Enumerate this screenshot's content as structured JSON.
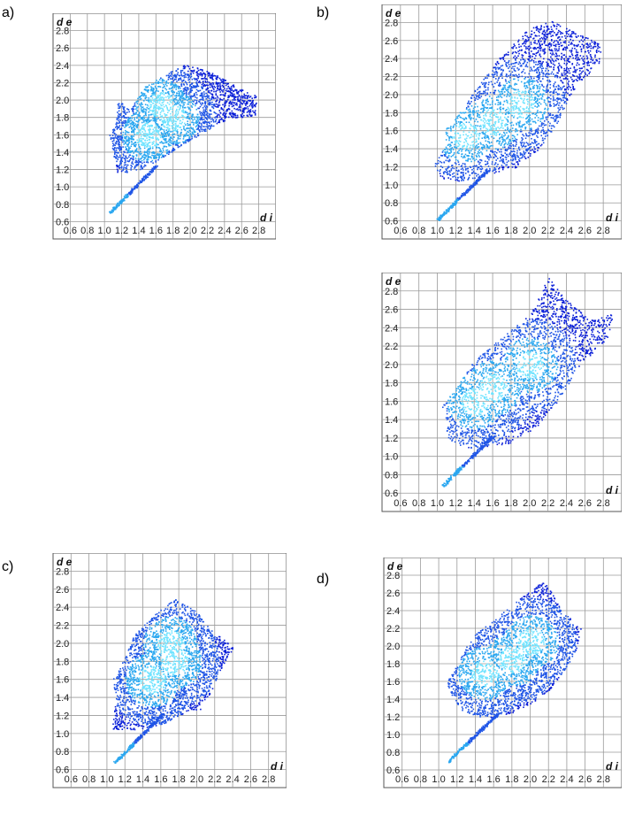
{
  "chart_data": [
    {
      "panel_label": "a)",
      "type": "scatter",
      "subtype": "fingerprint-plot",
      "xlabel": "d i",
      "ylabel": "d e",
      "xlim": [
        0.4,
        3.0
      ],
      "ylim": [
        0.4,
        3.0
      ],
      "x_ticks": [
        "0.6",
        "0.8",
        "1.0",
        "1.2",
        "1.4",
        "1.6",
        "1.8",
        "2.0",
        "2.2",
        "2.4",
        "2.6",
        "2.8"
      ],
      "y_ticks": [
        "0.6",
        "0.8",
        "1.0",
        "1.2",
        "1.4",
        "1.6",
        "1.8",
        "2.0",
        "2.2",
        "2.4",
        "2.6",
        "2.8"
      ],
      "grid": true,
      "spike_tip": [
        1.05,
        0.7
      ],
      "region_outline": [
        [
          1.15,
          1.15
        ],
        [
          1.05,
          1.62
        ],
        [
          1.12,
          1.7
        ],
        [
          1.15,
          2.0
        ],
        [
          1.3,
          1.9
        ],
        [
          1.45,
          2.15
        ],
        [
          1.7,
          2.3
        ],
        [
          1.95,
          2.42
        ],
        [
          2.3,
          2.3
        ],
        [
          2.65,
          2.1
        ],
        [
          2.78,
          2.05
        ],
        [
          2.75,
          1.82
        ],
        [
          2.45,
          1.8
        ],
        [
          2.1,
          1.6
        ],
        [
          1.85,
          1.45
        ],
        [
          1.6,
          1.3
        ],
        [
          1.4,
          1.2
        ]
      ],
      "density_centers": [
        [
          1.8,
          1.8
        ],
        [
          1.5,
          1.6
        ],
        [
          1.65,
          1.95
        ]
      ]
    },
    {
      "panel_label": "b)",
      "type": "scatter",
      "subtype": "fingerprint-plot",
      "xlabel": "d i",
      "ylabel": "d e",
      "xlim": [
        0.4,
        3.0
      ],
      "ylim": [
        0.4,
        3.0
      ],
      "x_ticks": [
        "0.6",
        "0.8",
        "1.0",
        "1.2",
        "1.4",
        "1.6",
        "1.8",
        "2.0",
        "2.2",
        "2.4",
        "2.6",
        "2.8"
      ],
      "y_ticks": [
        "0.6",
        "0.8",
        "1.0",
        "1.2",
        "1.4",
        "1.6",
        "1.8",
        "2.0",
        "2.2",
        "2.4",
        "2.6",
        "2.8"
      ],
      "grid": true,
      "spike_tip": [
        1.0,
        0.62
      ],
      "region_outline": [
        [
          1.05,
          1.05
        ],
        [
          0.95,
          1.25
        ],
        [
          1.1,
          1.45
        ],
        [
          1.05,
          1.6
        ],
        [
          1.2,
          1.75
        ],
        [
          1.4,
          2.05
        ],
        [
          1.7,
          2.45
        ],
        [
          2.0,
          2.75
        ],
        [
          2.25,
          2.82
        ],
        [
          2.6,
          2.65
        ],
        [
          2.78,
          2.55
        ],
        [
          2.75,
          2.35
        ],
        [
          2.5,
          2.1
        ],
        [
          2.3,
          1.7
        ],
        [
          2.1,
          1.4
        ],
        [
          1.85,
          1.2
        ],
        [
          1.5,
          1.1
        ],
        [
          1.3,
          1.05
        ]
      ],
      "density_centers": [
        [
          1.6,
          1.7
        ],
        [
          1.3,
          1.55
        ],
        [
          1.9,
          1.9
        ]
      ]
    },
    {
      "panel_label": "",
      "type": "scatter",
      "subtype": "fingerprint-plot",
      "xlabel": "d i",
      "ylabel": "d e",
      "xlim": [
        0.4,
        3.0
      ],
      "ylim": [
        0.4,
        3.0
      ],
      "x_ticks": [
        "0.6",
        "0.8",
        "1.0",
        "1.2",
        "1.4",
        "1.6",
        "1.8",
        "2.0",
        "2.2",
        "2.4",
        "2.6",
        "2.8"
      ],
      "y_ticks": [
        "0.6",
        "0.8",
        "1.0",
        "1.2",
        "1.4",
        "1.6",
        "1.8",
        "2.0",
        "2.2",
        "2.4",
        "2.6",
        "2.8"
      ],
      "grid": true,
      "spike_tip": [
        1.05,
        0.68
      ],
      "region_outline": [
        [
          1.1,
          1.2
        ],
        [
          1.05,
          1.55
        ],
        [
          1.2,
          1.75
        ],
        [
          1.4,
          2.05
        ],
        [
          1.7,
          2.3
        ],
        [
          2.0,
          2.55
        ],
        [
          2.2,
          2.95
        ],
        [
          2.4,
          2.7
        ],
        [
          2.65,
          2.5
        ],
        [
          2.9,
          2.55
        ],
        [
          2.85,
          2.3
        ],
        [
          2.55,
          2.0
        ],
        [
          2.3,
          1.6
        ],
        [
          2.05,
          1.3
        ],
        [
          1.8,
          1.15
        ],
        [
          1.5,
          1.1
        ],
        [
          1.3,
          1.1
        ]
      ],
      "density_centers": [
        [
          1.6,
          1.75
        ],
        [
          1.4,
          1.6
        ],
        [
          2.0,
          2.0
        ]
      ]
    },
    {
      "panel_label": "c)",
      "type": "scatter",
      "subtype": "fingerprint-plot",
      "xlabel": "d i",
      "ylabel": "d e",
      "xlim": [
        0.4,
        3.0
      ],
      "ylim": [
        0.4,
        3.0
      ],
      "x_ticks": [
        "0.6",
        "0.8",
        "1.0",
        "1.2",
        "1.4",
        "1.6",
        "1.8",
        "2.0",
        "2.2",
        "2.4",
        "2.6",
        "2.8"
      ],
      "y_ticks": [
        "0.6",
        "0.8",
        "1.0",
        "1.2",
        "1.4",
        "1.6",
        "1.8",
        "2.0",
        "2.2",
        "2.4",
        "2.6",
        "2.8"
      ],
      "grid": true,
      "spike_tip": [
        1.08,
        0.68
      ],
      "region_outline": [
        [
          1.05,
          1.05
        ],
        [
          1.1,
          1.4
        ],
        [
          1.05,
          1.62
        ],
        [
          1.2,
          1.85
        ],
        [
          1.3,
          2.1
        ],
        [
          1.5,
          2.3
        ],
        [
          1.75,
          2.5
        ],
        [
          2.0,
          2.35
        ],
        [
          2.2,
          2.1
        ],
        [
          2.35,
          2.05
        ],
        [
          2.4,
          1.95
        ],
        [
          2.25,
          1.7
        ],
        [
          2.15,
          1.45
        ],
        [
          2.0,
          1.3
        ],
        [
          2.05,
          1.27
        ],
        [
          1.9,
          1.25
        ],
        [
          1.6,
          1.1
        ],
        [
          1.35,
          1.05
        ]
      ],
      "density_centers": [
        [
          1.75,
          1.8
        ],
        [
          1.5,
          1.6
        ],
        [
          1.7,
          2.0
        ]
      ]
    },
    {
      "panel_label": "d)",
      "type": "scatter",
      "subtype": "fingerprint-plot",
      "xlabel": "d i",
      "ylabel": "d e",
      "xlim": [
        0.4,
        3.0
      ],
      "ylim": [
        0.4,
        3.0
      ],
      "x_ticks": [
        "0.6",
        "0.8",
        "1.0",
        "1.2",
        "1.4",
        "1.6",
        "1.8",
        "2.0",
        "2.2",
        "2.4",
        "2.6",
        "2.8"
      ],
      "y_ticks": [
        "0.6",
        "0.8",
        "1.0",
        "1.2",
        "1.4",
        "1.6",
        "1.8",
        "2.0",
        "2.2",
        "2.4",
        "2.6",
        "2.8"
      ],
      "grid": true,
      "spike_tip": [
        1.1,
        0.7
      ],
      "region_outline": [
        [
          1.2,
          1.3
        ],
        [
          1.08,
          1.6
        ],
        [
          1.2,
          1.8
        ],
        [
          1.35,
          2.1
        ],
        [
          1.6,
          2.3
        ],
        [
          1.9,
          2.55
        ],
        [
          2.15,
          2.75
        ],
        [
          2.35,
          2.4
        ],
        [
          2.55,
          2.2
        ],
        [
          2.5,
          1.95
        ],
        [
          2.35,
          1.7
        ],
        [
          2.2,
          1.5
        ],
        [
          2.0,
          1.35
        ],
        [
          1.7,
          1.2
        ],
        [
          1.45,
          1.2
        ]
      ],
      "density_centers": [
        [
          1.8,
          1.85
        ],
        [
          1.5,
          1.7
        ],
        [
          2.0,
          2.05
        ]
      ]
    }
  ]
}
